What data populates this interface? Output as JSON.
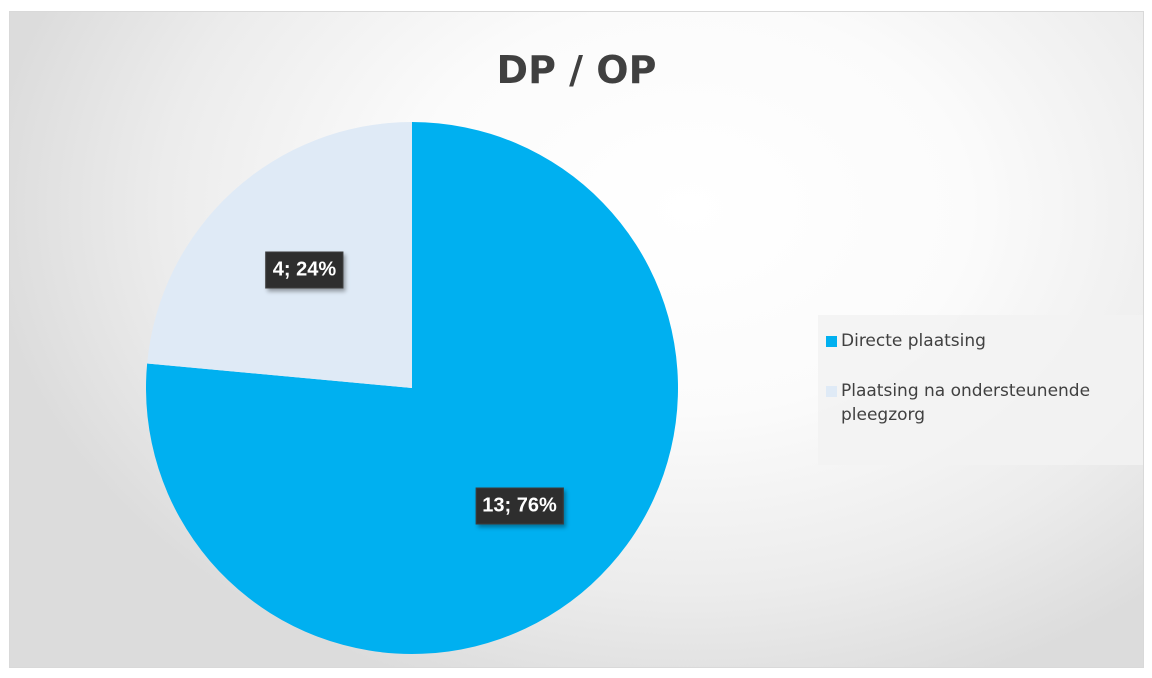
{
  "chart_data": {
    "type": "pie",
    "title": "DP / OP",
    "categories": [
      "Directe plaatsing",
      "Plaatsing na ondersteunende pleegzorg"
    ],
    "values": [
      13,
      4
    ],
    "percentages": [
      76,
      24
    ],
    "data_labels": [
      "13; 76%",
      "4; 24%"
    ],
    "colors": [
      "#00b0f0",
      "#dfeaf6"
    ],
    "legend_position": "right"
  }
}
